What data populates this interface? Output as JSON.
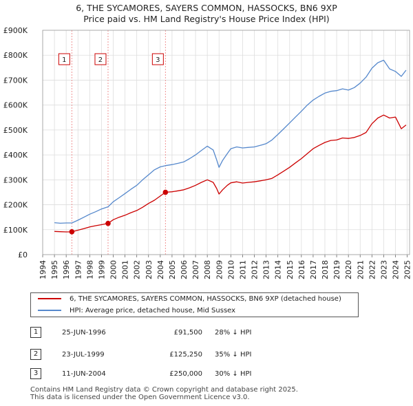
{
  "chart_data": {
    "type": "line",
    "title": "6, THE SYCAMORES, SAYERS COMMON, HASSOCKS, BN6 9XP",
    "subtitle": "Price paid vs. HM Land Registry's House Price Index (HPI)",
    "xlim": [
      1994,
      2025.2
    ],
    "ylim": [
      0,
      900000
    ],
    "x_ticks": [
      "1994",
      "1995",
      "1996",
      "1997",
      "1998",
      "1999",
      "2000",
      "2001",
      "2002",
      "2003",
      "2004",
      "2005",
      "2006",
      "2007",
      "2008",
      "2009",
      "2010",
      "2011",
      "2012",
      "2013",
      "2014",
      "2015",
      "2016",
      "2017",
      "2018",
      "2019",
      "2020",
      "2021",
      "2022",
      "2023",
      "2024",
      "2025"
    ],
    "y_ticks": [
      {
        "value": 0,
        "label": "£0"
      },
      {
        "value": 100000,
        "label": "£100K"
      },
      {
        "value": 200000,
        "label": "£200K"
      },
      {
        "value": 300000,
        "label": "£300K"
      },
      {
        "value": 400000,
        "label": "£400K"
      },
      {
        "value": 500000,
        "label": "£500K"
      },
      {
        "value": 600000,
        "label": "£600K"
      },
      {
        "value": 700000,
        "label": "£700K"
      },
      {
        "value": 800000,
        "label": "£800K"
      },
      {
        "value": 900000,
        "label": "£900K"
      }
    ],
    "series": [
      {
        "name": "6, THE SYCAMORES, SAYERS COMMON, HASSOCKS, BN6 9XP (detached house)",
        "color": "#cc0000",
        "x": [
          1995.0,
          1995.5,
          1996.0,
          1996.48,
          1997.0,
          1997.5,
          1998.0,
          1998.5,
          1999.0,
          1999.56,
          2000.0,
          2000.5,
          2001.0,
          2001.5,
          2002.0,
          2002.5,
          2003.0,
          2003.5,
          2004.0,
          2004.44,
          2005.0,
          2005.5,
          2006.0,
          2006.5,
          2007.0,
          2007.5,
          2008.0,
          2008.5,
          2008.8,
          2009.0,
          2009.3,
          2009.7,
          2010.0,
          2010.5,
          2011.0,
          2011.5,
          2012.0,
          2012.5,
          2013.0,
          2013.5,
          2014.0,
          2014.5,
          2015.0,
          2015.5,
          2016.0,
          2016.5,
          2017.0,
          2017.5,
          2018.0,
          2018.5,
          2019.0,
          2019.5,
          2020.0,
          2020.5,
          2021.0,
          2021.5,
          2022.0,
          2022.5,
          2023.0,
          2023.5,
          2024.0,
          2024.5,
          2024.9
        ],
        "y": [
          93000,
          92000,
          91000,
          91500,
          98000,
          104000,
          111000,
          116000,
          120000,
          125250,
          140000,
          150000,
          158000,
          168000,
          177000,
          190000,
          205000,
          218000,
          235000,
          250000,
          252000,
          256000,
          260000,
          268000,
          278000,
          290000,
          300000,
          290000,
          265000,
          243000,
          260000,
          278000,
          288000,
          292000,
          287000,
          290000,
          292000,
          296000,
          300000,
          306000,
          320000,
          335000,
          350000,
          368000,
          385000,
          405000,
          425000,
          438000,
          450000,
          458000,
          460000,
          468000,
          466000,
          470000,
          478000,
          490000,
          525000,
          548000,
          560000,
          548000,
          552000,
          505000,
          520000
        ]
      },
      {
        "name": "HPI: Average price, detached house, Mid Sussex",
        "color": "#5588cc",
        "x": [
          1995.0,
          1995.5,
          1996.0,
          1996.48,
          1997.0,
          1997.5,
          1998.0,
          1998.5,
          1999.0,
          1999.56,
          2000.0,
          2000.5,
          2001.0,
          2001.5,
          2002.0,
          2002.5,
          2003.0,
          2003.5,
          2004.0,
          2004.44,
          2005.0,
          2005.5,
          2006.0,
          2006.5,
          2007.0,
          2007.5,
          2008.0,
          2008.5,
          2008.8,
          2009.0,
          2009.3,
          2009.7,
          2010.0,
          2010.5,
          2011.0,
          2011.5,
          2012.0,
          2012.5,
          2013.0,
          2013.5,
          2014.0,
          2014.5,
          2015.0,
          2015.5,
          2016.0,
          2016.5,
          2017.0,
          2017.5,
          2018.0,
          2018.5,
          2019.0,
          2019.5,
          2020.0,
          2020.5,
          2021.0,
          2021.5,
          2022.0,
          2022.5,
          2023.0,
          2023.5,
          2024.0,
          2024.5,
          2024.9
        ],
        "y": [
          128000,
          126000,
          127000,
          127000,
          138000,
          150000,
          162000,
          172000,
          183000,
          192000,
          212000,
          228000,
          245000,
          262000,
          278000,
          300000,
          320000,
          340000,
          352000,
          357000,
          361000,
          366000,
          372000,
          385000,
          400000,
          418000,
          435000,
          420000,
          380000,
          350000,
          378000,
          405000,
          425000,
          432000,
          428000,
          430000,
          432000,
          438000,
          445000,
          460000,
          482000,
          505000,
          528000,
          552000,
          575000,
          600000,
          620000,
          635000,
          648000,
          655000,
          658000,
          665000,
          660000,
          670000,
          688000,
          712000,
          748000,
          770000,
          780000,
          745000,
          735000,
          715000,
          740000
        ]
      }
    ],
    "sales": [
      {
        "label": "1",
        "x": 1996.48,
        "y": 91500
      },
      {
        "label": "2",
        "x": 1999.56,
        "y": 125250
      },
      {
        "label": "3",
        "x": 2004.44,
        "y": 250000
      }
    ]
  },
  "legend": {
    "property": "6, THE SYCAMORES, SAYERS COMMON, HASSOCKS, BN6 9XP (detached house)",
    "hpi": "HPI: Average price, detached house, Mid Sussex",
    "property_color": "#cc0000",
    "hpi_color": "#5588cc"
  },
  "sales_table": [
    {
      "num": "1",
      "date": "25-JUN-1996",
      "price": "£91,500",
      "hpi": "28% ↓ HPI"
    },
    {
      "num": "2",
      "date": "23-JUL-1999",
      "price": "£125,250",
      "hpi": "35% ↓ HPI"
    },
    {
      "num": "3",
      "date": "11-JUN-2004",
      "price": "£250,000",
      "hpi": "30% ↓ HPI"
    }
  ],
  "footer": {
    "line1": "Contains HM Land Registry data © Crown copyright and database right 2025.",
    "line2": "This data is licensed under the Open Government Licence v3.0."
  }
}
